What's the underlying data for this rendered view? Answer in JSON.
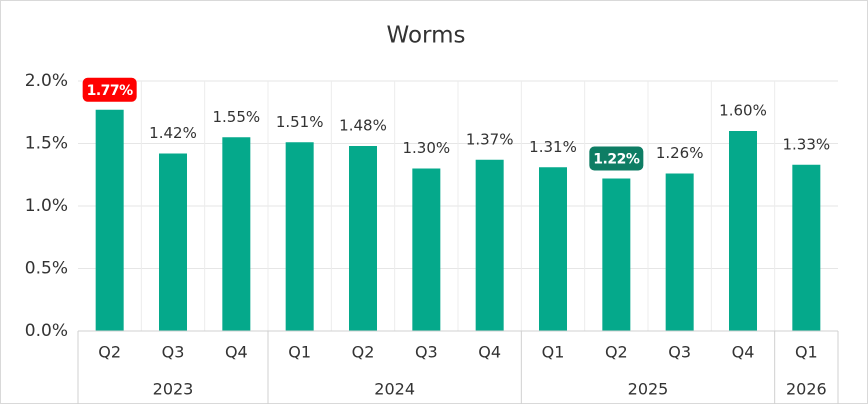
{
  "chart_data": {
    "type": "bar",
    "title": "Worms",
    "categories": [
      "Q2",
      "Q3",
      "Q4",
      "Q1",
      "Q2",
      "Q3",
      "Q4",
      "Q1",
      "Q2",
      "Q3",
      "Q4",
      "Q1"
    ],
    "groups": [
      "2023",
      "2023",
      "2023",
      "2024",
      "2024",
      "2024",
      "2024",
      "2025",
      "2025",
      "2025",
      "2025",
      "2026"
    ],
    "values": [
      1.77,
      1.42,
      1.55,
      1.51,
      1.48,
      1.3,
      1.37,
      1.31,
      1.22,
      1.26,
      1.6,
      1.33
    ],
    "value_labels": [
      "1.77%",
      "1.42%",
      "1.55%",
      "1.51%",
      "1.48%",
      "1.30%",
      "1.37%",
      "1.31%",
      "1.22%",
      "1.26%",
      "1.60%",
      "1.33%"
    ],
    "color": "#05a98b",
    "max_label_color": "#ff0000",
    "min_label_color": "#0e7d64",
    "ylim": [
      0,
      2
    ],
    "yticks": [
      {
        "value": 0,
        "label": "0.0%"
      },
      {
        "value": 0.5,
        "label": "0.5%"
      },
      {
        "value": 1,
        "label": "1.0%"
      },
      {
        "value": 1.5,
        "label": "1.5%"
      },
      {
        "value": 2,
        "label": "2.0%"
      }
    ],
    "grid": true
  }
}
